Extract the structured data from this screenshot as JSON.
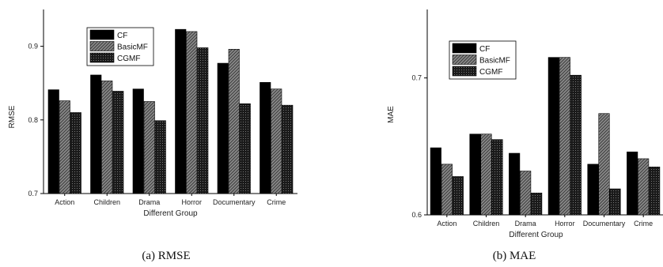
{
  "chart_data": [
    {
      "type": "bar",
      "caption": "(a) RMSE",
      "xlabel": "Different Group",
      "ylabel": "RMSE",
      "ylim": [
        0.7,
        0.95
      ],
      "yticks": [
        0.7,
        0.8,
        0.9
      ],
      "categories": [
        "Action",
        "Children",
        "Drama",
        "Horror",
        "Documentary",
        "Crime"
      ],
      "series": [
        {
          "name": "CF",
          "values": [
            0.841,
            0.861,
            0.842,
            0.923,
            0.877,
            0.851
          ]
        },
        {
          "name": "BasicMF",
          "values": [
            0.826,
            0.853,
            0.825,
            0.92,
            0.896,
            0.842
          ]
        },
        {
          "name": "CGMF",
          "values": [
            0.81,
            0.839,
            0.799,
            0.898,
            0.822,
            0.82
          ]
        }
      ],
      "legend_position": "top-center"
    },
    {
      "type": "bar",
      "caption": "(b) MAE",
      "xlabel": "Different Group",
      "ylabel": "MAE",
      "ylim": [
        0.6,
        0.75
      ],
      "yticks": [
        0.6,
        0.7
      ],
      "categories": [
        "Action",
        "Children",
        "Drama",
        "Horror",
        "Documentary",
        "Crime"
      ],
      "series": [
        {
          "name": "CF",
          "values": [
            0.649,
            0.659,
            0.645,
            0.715,
            0.637,
            0.646
          ]
        },
        {
          "name": "BasicMF",
          "values": [
            0.637,
            0.659,
            0.632,
            0.715,
            0.674,
            0.641
          ]
        },
        {
          "name": "CGMF",
          "values": [
            0.628,
            0.655,
            0.616,
            0.702,
            0.619,
            0.635
          ]
        }
      ],
      "legend_position": "top-left"
    }
  ]
}
